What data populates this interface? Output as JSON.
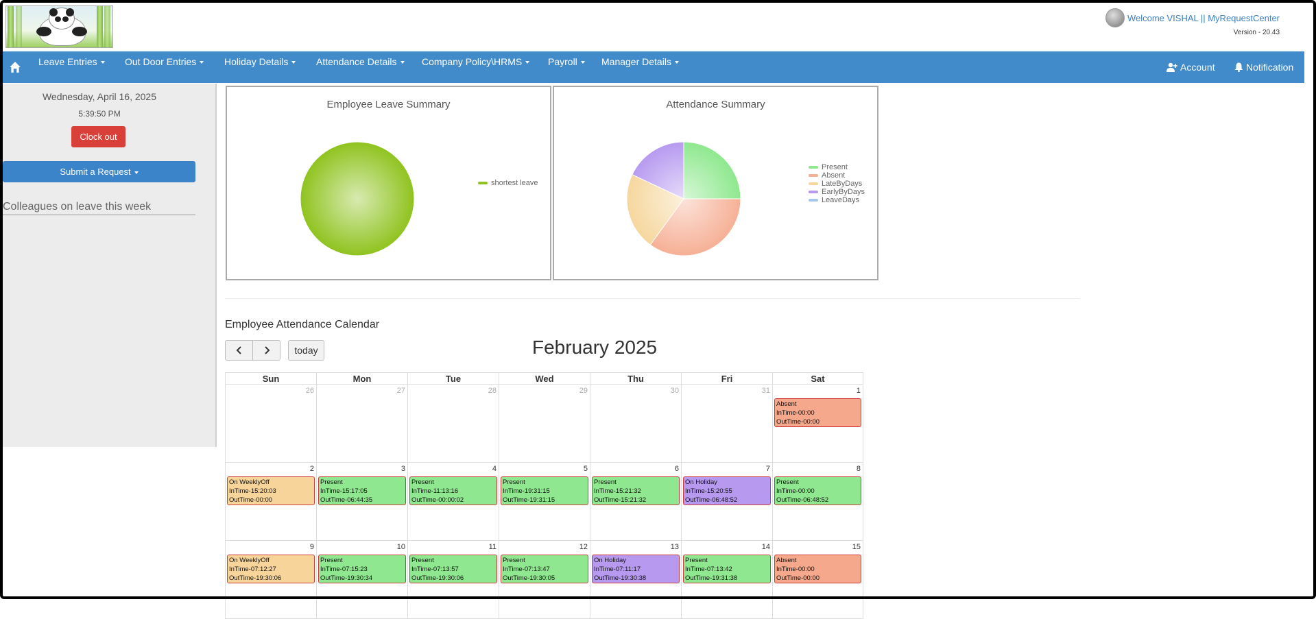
{
  "header": {
    "welcome": "Welcome VISHAL || MyRequestCenter",
    "version": "Version - 20.43"
  },
  "nav": {
    "items": [
      {
        "label": "Leave Entries"
      },
      {
        "label": "Out Door Entries"
      },
      {
        "label": "Holiday Details"
      },
      {
        "label": "Attendance Details"
      },
      {
        "label": "Company Policy\\HRMS"
      },
      {
        "label": "Payroll"
      },
      {
        "label": "Manager Details"
      }
    ],
    "account": "Account",
    "notification": "Notification"
  },
  "sidebar": {
    "date": "Wednesday, April 16, 2025",
    "time": "5:39:50 PM",
    "clock_out": "Clock out",
    "submit_request": "Submit a Request",
    "colleagues_heading": "Colleagues on leave this week"
  },
  "leave_summary": {
    "title": "Employee Leave Summary",
    "chart_data": {
      "type": "pie",
      "title": "Employee Leave Summary",
      "slices": [
        {
          "label": "shortest leave",
          "value": 100,
          "color": "#8fc31f"
        }
      ],
      "legend": "right"
    }
  },
  "attendance_summary": {
    "title": "Attendance Summary",
    "chart_data": {
      "type": "pie",
      "title": "Attendance Summary",
      "slices": [
        {
          "label": "Present",
          "value": 25,
          "color": "#8ee88e"
        },
        {
          "label": "Absent",
          "value": 35,
          "color": "#f6b096"
        },
        {
          "label": "LateByDays",
          "value": 22,
          "color": "#f6d79e"
        },
        {
          "label": "EarlyByDays",
          "value": 18,
          "color": "#b79af0"
        },
        {
          "label": "LeaveDays",
          "value": 0,
          "color": "#a7c6ec"
        }
      ],
      "legend": "right"
    }
  },
  "calendar": {
    "heading": "Employee Attendance Calendar",
    "today_label": "today",
    "month_title": "February 2025",
    "weekdays": [
      "Sun",
      "Mon",
      "Tue",
      "Wed",
      "Thu",
      "Fri",
      "Sat"
    ],
    "weeks": [
      [
        {
          "day": "26",
          "other": true
        },
        {
          "day": "27",
          "other": true
        },
        {
          "day": "28",
          "other": true
        },
        {
          "day": "29",
          "other": true
        },
        {
          "day": "30",
          "other": true
        },
        {
          "day": "31",
          "other": true
        },
        {
          "day": "1",
          "event": {
            "type": "absent",
            "status": "Absent",
            "in": "InTime-00:00",
            "out": "OutTime-00:00"
          }
        }
      ],
      [
        {
          "day": "2",
          "event": {
            "type": "weeklyoff",
            "status": "On WeeklyOff",
            "in": "InTime-15:20:03",
            "out": "OutTime-00:00"
          }
        },
        {
          "day": "3",
          "event": {
            "type": "present",
            "status": "Present",
            "in": "InTime-15:17:05",
            "out": "OutTime-06:44:35"
          }
        },
        {
          "day": "4",
          "event": {
            "type": "present",
            "status": "Present",
            "in": "InTime-11:13:16",
            "out": "OutTime-00:00:02"
          }
        },
        {
          "day": "5",
          "event": {
            "type": "present",
            "status": "Present",
            "in": "InTime-19:31:15",
            "out": "OutTime-19:31:15"
          }
        },
        {
          "day": "6",
          "event": {
            "type": "present",
            "status": "Present",
            "in": "InTime-15:21:32",
            "out": "OutTime-15:21:32"
          }
        },
        {
          "day": "7",
          "event": {
            "type": "holiday",
            "status": "On Holiday",
            "in": "InTime-15:20:55",
            "out": "OutTime-06:48:52"
          }
        },
        {
          "day": "8",
          "event": {
            "type": "present",
            "status": "Present",
            "in": "InTime-00:00",
            "out": "OutTime-06:48:52"
          }
        }
      ],
      [
        {
          "day": "9",
          "event": {
            "type": "weeklyoff",
            "status": "On WeeklyOff",
            "in": "InTime-07:12:27",
            "out": "OutTime-19:30:06"
          }
        },
        {
          "day": "10",
          "event": {
            "type": "present",
            "status": "Present",
            "in": "InTime-07:15:23",
            "out": "OutTime-19:30:34"
          }
        },
        {
          "day": "11",
          "event": {
            "type": "present",
            "status": "Present",
            "in": "InTime-07:13:57",
            "out": "OutTime-19:30:06"
          }
        },
        {
          "day": "12",
          "event": {
            "type": "present",
            "status": "Present",
            "in": "InTime-07:13:47",
            "out": "OutTime-19:30:05"
          }
        },
        {
          "day": "13",
          "event": {
            "type": "holiday",
            "status": "On Holiday",
            "in": "InTime-07:11:17",
            "out": "OutTime-19:30:38"
          }
        },
        {
          "day": "14",
          "event": {
            "type": "present",
            "status": "Present",
            "in": "InTime-07:13:42",
            "out": "OutTime-19:31:38"
          }
        },
        {
          "day": "15",
          "event": {
            "type": "absent",
            "status": "Absent",
            "in": "InTime-00:00",
            "out": "OutTime-00:00"
          }
        }
      ]
    ]
  }
}
